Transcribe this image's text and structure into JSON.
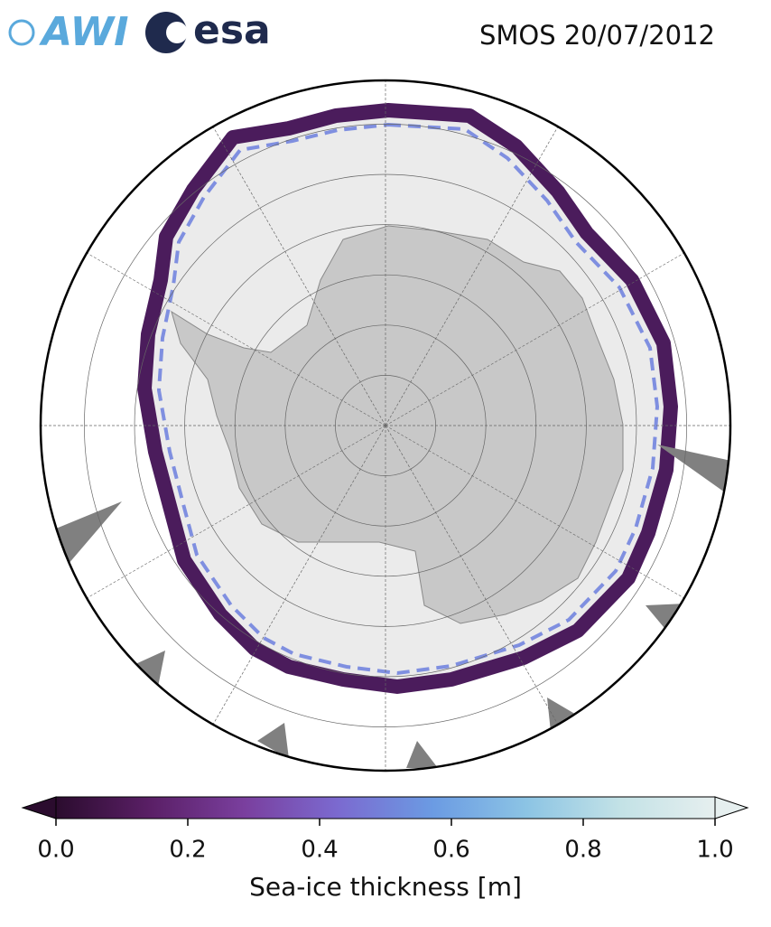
{
  "logos": [
    "AWI",
    "esa"
  ],
  "title": "SMOS 20/07/2012",
  "colorbar": {
    "label": "Sea-ice thickness [m]",
    "lim": [
      0,
      1
    ],
    "ticks": [
      {
        "value": 0,
        "label": "0.0"
      },
      0.2,
      0.4,
      0.6,
      0.8,
      {
        "value": 1,
        "label": "1.0"
      }
    ],
    "colors": [
      "#2b0c2e",
      "#5a1f66",
      "#7a3f9e",
      "#7b6ad0",
      "#6b9be3",
      "#8cc4e4",
      "#c3e2e6",
      "#e6efef"
    ]
  }
}
